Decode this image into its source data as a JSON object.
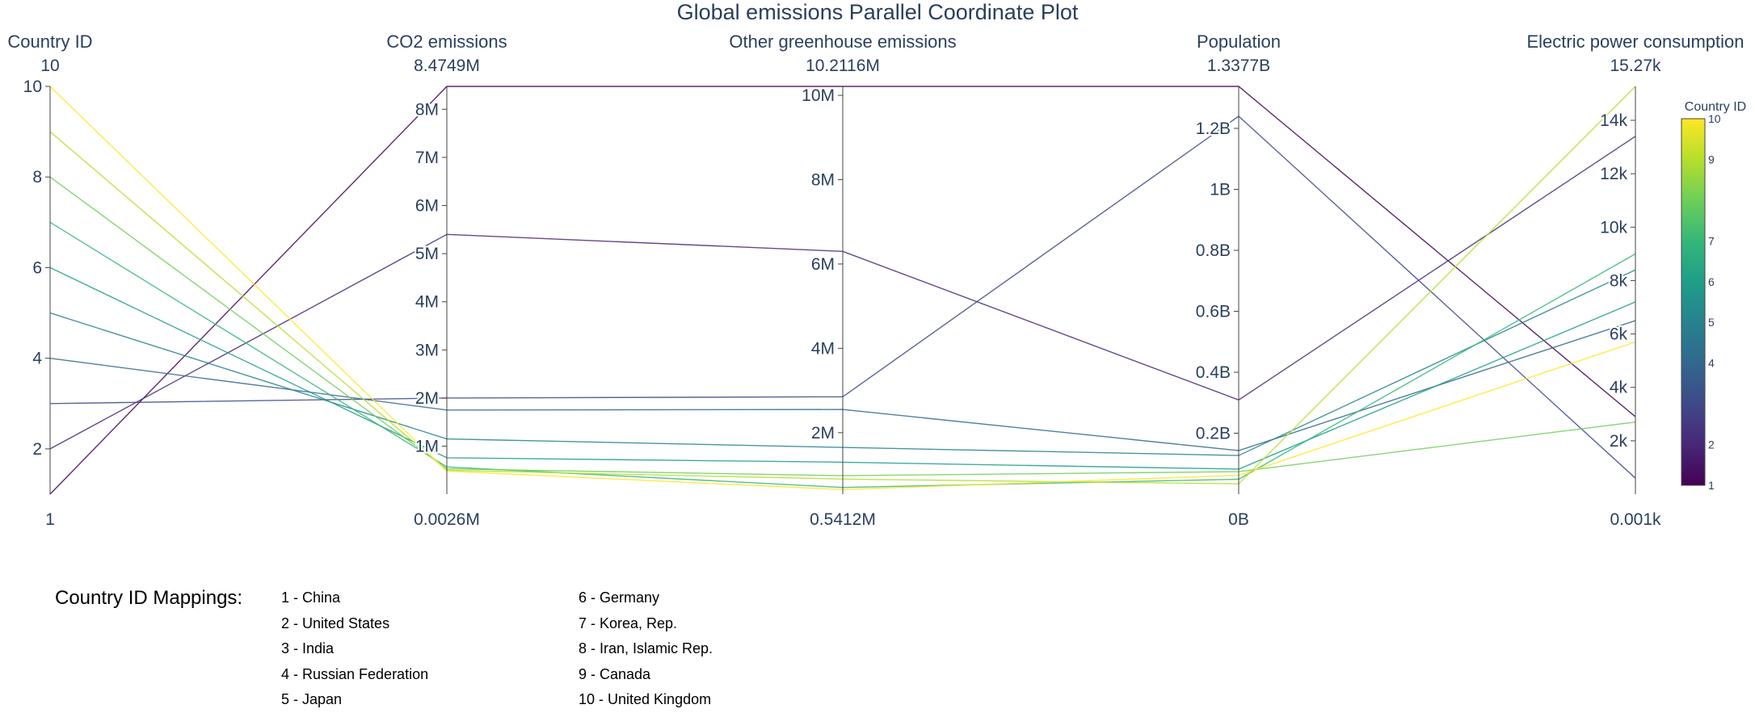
{
  "chart_data": {
    "type": "parallel-coordinates",
    "title": "Global emissions Parallel Coordinate Plot",
    "dimensions": [
      {
        "key": "country_id",
        "label": "Country ID",
        "range": [
          1,
          10
        ],
        "max_label": "10",
        "min_label": "1",
        "ticks": [
          2,
          4,
          6,
          8,
          10
        ],
        "tick_labels": [
          "2",
          "4",
          "6",
          "8",
          "10"
        ]
      },
      {
        "key": "co2",
        "label": "CO2 emissions",
        "range": [
          2600,
          8474900
        ],
        "max_label": "8.4749M",
        "min_label": "0.0026M",
        "ticks": [
          1000000,
          2000000,
          3000000,
          4000000,
          5000000,
          6000000,
          7000000,
          8000000
        ],
        "tick_labels": [
          "1M",
          "2M",
          "3M",
          "4M",
          "5M",
          "6M",
          "7M",
          "8M"
        ]
      },
      {
        "key": "other_ghg",
        "label": "Other greenhouse emissions",
        "range": [
          541200,
          10211600
        ],
        "max_label": "10.2116M",
        "min_label": "0.5412M",
        "ticks": [
          2000000,
          4000000,
          6000000,
          8000000,
          10000000
        ],
        "tick_labels": [
          "2M",
          "4M",
          "6M",
          "8M",
          "10M"
        ]
      },
      {
        "key": "population",
        "label": "Population",
        "range": [
          0,
          1337700000
        ],
        "max_label": "1.3377B",
        "min_label": "0B",
        "ticks": [
          200000000,
          400000000,
          600000000,
          800000000,
          1000000000,
          1200000000
        ],
        "tick_labels": [
          "0.2B",
          "0.4B",
          "0.6B",
          "0.8B",
          "1B",
          "1.2B"
        ]
      },
      {
        "key": "electric",
        "label": "Electric power consumption",
        "range": [
          1,
          15270
        ],
        "max_label": "15.27k",
        "min_label": "0.001k",
        "ticks": [
          2000,
          4000,
          6000,
          8000,
          10000,
          12000,
          14000
        ],
        "tick_labels": [
          "2k",
          "4k",
          "6k",
          "8k",
          "10k",
          "12k",
          "14k"
        ]
      }
    ],
    "rows": [
      {
        "country_id": 1,
        "co2": 8474900,
        "other_ghg": 10211600,
        "population": 1337700000,
        "electric": 2900
      },
      {
        "country_id": 2,
        "co2": 5400000,
        "other_ghg": 6300000,
        "population": 309000000,
        "electric": 13400
      },
      {
        "country_id": 3,
        "co2": 2000000,
        "other_ghg": 2850000,
        "population": 1240000000,
        "electric": 600
      },
      {
        "country_id": 4,
        "co2": 1750000,
        "other_ghg": 2550000,
        "population": 143000000,
        "electric": 6500
      },
      {
        "country_id": 5,
        "co2": 1150000,
        "other_ghg": 1650000,
        "population": 127000000,
        "electric": 8400
      },
      {
        "country_id": 6,
        "co2": 760000,
        "other_ghg": 1300000,
        "population": 82000000,
        "electric": 7200
      },
      {
        "country_id": 7,
        "co2": 570000,
        "other_ghg": 700000,
        "population": 49000000,
        "electric": 9000
      },
      {
        "country_id": 8,
        "co2": 530000,
        "other_ghg": 980000,
        "population": 74000000,
        "electric": 2700
      },
      {
        "country_id": 9,
        "co2": 500000,
        "other_ghg": 900000,
        "population": 34000000,
        "electric": 15270
      },
      {
        "country_id": 10,
        "co2": 480000,
        "other_ghg": 650000,
        "population": 62000000,
        "electric": 5700
      }
    ],
    "colorbar": {
      "title": "Country ID",
      "ticks": [
        1,
        2,
        4,
        5,
        6,
        7,
        9,
        10
      ],
      "tick_labels": [
        "1",
        "2",
        "4",
        "5",
        "6",
        "7",
        "9",
        "10"
      ]
    },
    "colorscale": [
      "#440154",
      "#482878",
      "#3e4989",
      "#31688e",
      "#26828e",
      "#1f9e89",
      "#35b779",
      "#6ece58",
      "#b5de2b",
      "#fde725"
    ]
  },
  "mappings": {
    "title": "Country ID Mappings:",
    "col1": [
      "1 - China",
      "2 - United States",
      "3 - India",
      "4 - Russian Federation",
      "5 - Japan"
    ],
    "col2": [
      "6 - Germany",
      "7 - Korea, Rep.",
      "8 - Iran, Islamic Rep.",
      "9 - Canada",
      "10 - United Kingdom"
    ]
  }
}
